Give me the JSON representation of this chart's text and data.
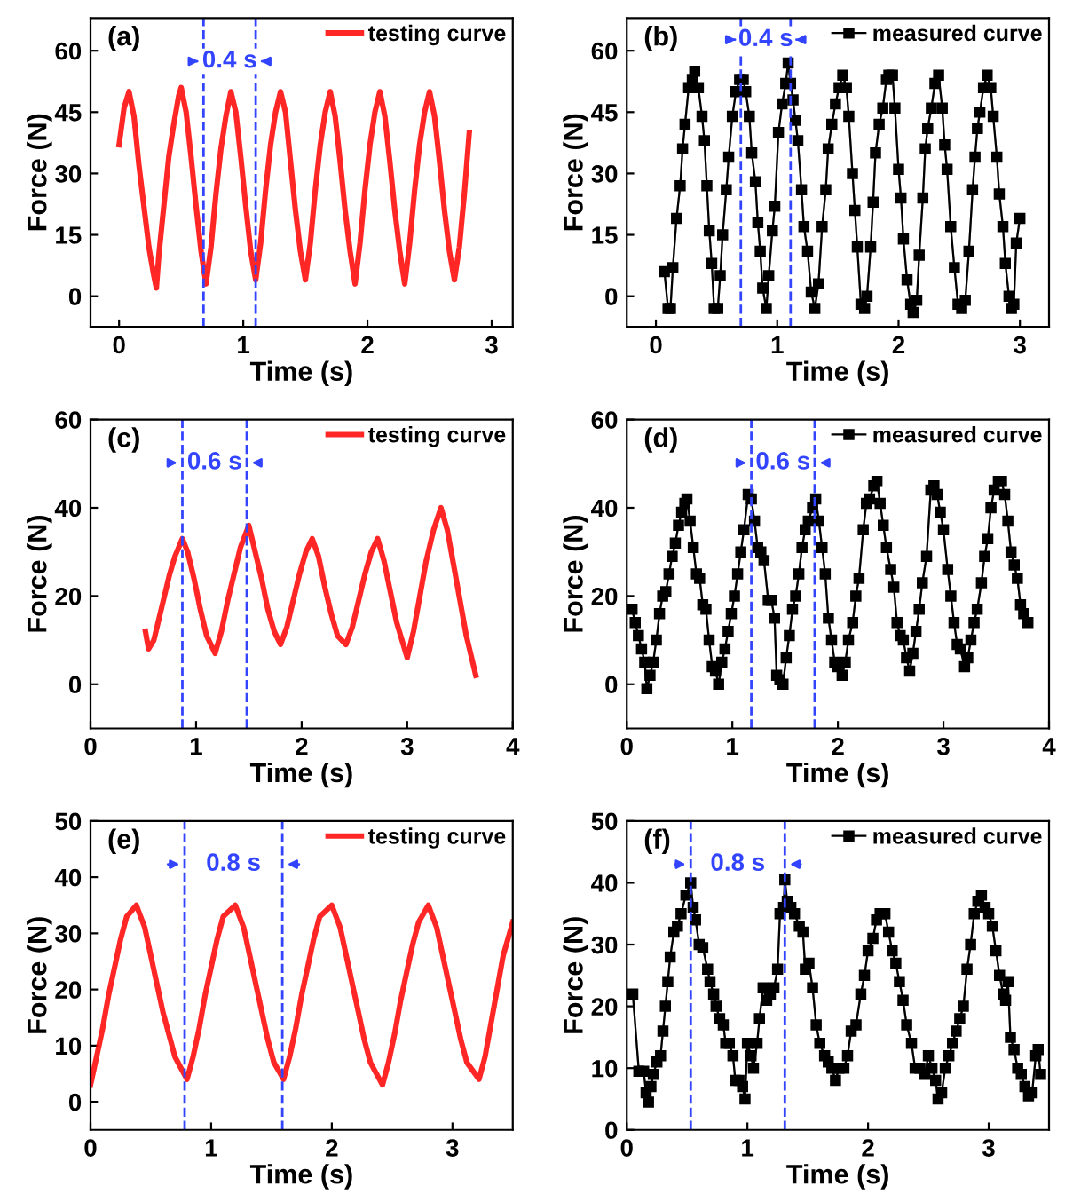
{
  "chart_data": [
    {
      "type": "line",
      "annotations": [
        "(a)",
        "0.4 s"
      ],
      "xlabel": "Time (s)",
      "ylabel": "Force (N)",
      "xlim": [
        -0.23,
        3.17
      ],
      "ylim": [
        -7.5,
        68
      ],
      "xticks": [
        0,
        1,
        2,
        3
      ],
      "yticks": [
        0,
        15,
        30,
        45,
        60
      ],
      "grid": false,
      "legend": "top right",
      "marker": "none",
      "line_style": "solid",
      "ref_lines": [
        {
          "axis": "x",
          "value": 0.68,
          "color": "#3344ff",
          "line_style": "dashed"
        },
        {
          "axis": "x",
          "value": 1.1,
          "color": "#3344ff",
          "line_style": "dashed"
        }
      ],
      "series": [
        {
          "name": "testing curve",
          "color": "#ff0000",
          "x": [
            0,
            0.04,
            0.08,
            0.12,
            0.16,
            0.2,
            0.24,
            0.28,
            0.3,
            0.32,
            0.36,
            0.4,
            0.44,
            0.48,
            0.5,
            0.54,
            0.58,
            0.62,
            0.66,
            0.7,
            0.74,
            0.78,
            0.82,
            0.86,
            0.9,
            0.94,
            0.98,
            1.02,
            1.06,
            1.1,
            1.14,
            1.18,
            1.22,
            1.26,
            1.3,
            1.34,
            1.38,
            1.42,
            1.46,
            1.5,
            1.54,
            1.58,
            1.62,
            1.66,
            1.7,
            1.74,
            1.78,
            1.82,
            1.86,
            1.9,
            1.94,
            1.98,
            2.02,
            2.06,
            2.1,
            2.14,
            2.18,
            2.22,
            2.26,
            2.3,
            2.34,
            2.38,
            2.42,
            2.46,
            2.5,
            2.54,
            2.58,
            2.62,
            2.66,
            2.7,
            2.74,
            2.78,
            2.82
          ],
          "values": [
            37,
            46,
            50,
            44,
            32,
            22,
            12,
            5,
            2,
            10,
            22,
            34,
            42,
            49,
            51,
            45,
            34,
            22,
            11,
            3,
            12,
            25,
            36,
            44,
            50,
            45,
            34,
            22,
            11,
            4,
            13,
            26,
            37,
            45,
            50,
            45,
            33,
            21,
            11,
            4,
            13,
            26,
            37,
            45,
            50,
            44,
            33,
            21,
            11,
            3,
            13,
            26,
            37,
            45,
            50,
            44,
            33,
            21,
            11,
            3,
            13,
            26,
            37,
            45,
            50,
            44,
            33,
            21,
            11,
            4,
            12,
            25,
            40
          ]
        }
      ]
    },
    {
      "type": "line",
      "annotations": [
        "(b)",
        "0.4 s"
      ],
      "xlabel": "Time (s)",
      "ylabel": "Force (N)",
      "xlim": [
        -0.24,
        3.24
      ],
      "ylim": [
        -7.5,
        68
      ],
      "xticks": [
        0,
        1,
        2,
        3
      ],
      "yticks": [
        0,
        15,
        30,
        45,
        60
      ],
      "grid": false,
      "legend": "top right",
      "marker": "square",
      "line_style": "solid",
      "ref_lines": [
        {
          "axis": "x",
          "value": 0.7,
          "color": "#3344ff",
          "line_style": "dashed"
        },
        {
          "axis": "x",
          "value": 1.11,
          "color": "#3344ff",
          "line_style": "dashed"
        }
      ],
      "series": [
        {
          "name": "measured curve",
          "color": "#000000",
          "x": [
            0.07,
            0.1,
            0.12,
            0.14,
            0.17,
            0.2,
            0.22,
            0.24,
            0.27,
            0.3,
            0.32,
            0.35,
            0.38,
            0.4,
            0.42,
            0.44,
            0.46,
            0.48,
            0.51,
            0.53,
            0.55,
            0.58,
            0.6,
            0.63,
            0.66,
            0.69,
            0.72,
            0.74,
            0.77,
            0.79,
            0.82,
            0.84,
            0.86,
            0.88,
            0.91,
            0.93,
            0.96,
            0.98,
            1.01,
            1.04,
            1.07,
            1.09,
            1.11,
            1.13,
            1.15,
            1.17,
            1.2,
            1.22,
            1.25,
            1.28,
            1.31,
            1.34,
            1.37,
            1.4,
            1.42,
            1.45,
            1.48,
            1.51,
            1.54,
            1.57,
            1.59,
            1.62,
            1.64,
            1.66,
            1.69,
            1.72,
            1.74,
            1.77,
            1.79,
            1.81,
            1.84,
            1.87,
            1.9,
            1.92,
            1.95,
            1.97,
            2.0,
            2.02,
            2.04,
            2.07,
            2.1,
            2.12,
            2.15,
            2.17,
            2.2,
            2.22,
            2.24,
            2.27,
            2.3,
            2.33,
            2.36,
            2.38,
            2.4,
            2.43,
            2.46,
            2.49,
            2.52,
            2.55,
            2.58,
            2.61,
            2.63,
            2.65,
            2.67,
            2.7,
            2.73,
            2.76,
            2.78,
            2.81,
            2.83,
            2.86,
            2.88,
            2.91,
            2.93,
            2.95,
            2.97,
            3.0
          ],
          "values": [
            6,
            -3,
            -3,
            7,
            19,
            27,
            36,
            42,
            51,
            53,
            55,
            51,
            44,
            38,
            27,
            16,
            8,
            -3,
            -3,
            5,
            15,
            26,
            34,
            44,
            50,
            53,
            53,
            50,
            44,
            35,
            28,
            18,
            11,
            2,
            -3,
            5,
            16,
            22,
            40,
            47,
            52,
            57,
            52,
            48,
            43,
            38,
            26,
            17,
            11,
            1,
            -3,
            3,
            17,
            26,
            36,
            42,
            47,
            51,
            54,
            51,
            44,
            30,
            21,
            12,
            -2,
            -3,
            0,
            12,
            23,
            35,
            42,
            46,
            53,
            54,
            54,
            46,
            31,
            24,
            14,
            4,
            -2,
            -4,
            -1,
            10,
            24,
            36,
            41,
            46,
            52,
            54,
            46,
            37,
            31,
            17,
            7,
            -2,
            -3,
            -1,
            11,
            26,
            34,
            41,
            45,
            51,
            54,
            51,
            44,
            34,
            25,
            17,
            8,
            0,
            -3,
            -2,
            13,
            19
          ]
        }
      ]
    },
    {
      "type": "line",
      "annotations": [
        "(c)",
        "0.6 s"
      ],
      "xlabel": "Time (s)",
      "ylabel": "Force (N)",
      "xlim": [
        0,
        4
      ],
      "ylim": [
        -10,
        60
      ],
      "xticks": [
        0,
        1,
        2,
        3,
        4
      ],
      "yticks": [
        0,
        20,
        40,
        60
      ],
      "grid": false,
      "legend": "top right",
      "marker": "none",
      "line_style": "solid",
      "ref_lines": [
        {
          "axis": "x",
          "value": 0.87,
          "color": "#3344ff",
          "line_style": "dashed"
        },
        {
          "axis": "x",
          "value": 1.48,
          "color": "#3344ff",
          "line_style": "dashed"
        }
      ],
      "series": [
        {
          "name": "testing curve",
          "color": "#ff0000",
          "x": [
            0.52,
            0.55,
            0.6,
            0.65,
            0.7,
            0.75,
            0.8,
            0.87,
            0.92,
            0.98,
            1.04,
            1.1,
            1.18,
            1.24,
            1.3,
            1.36,
            1.42,
            1.5,
            1.56,
            1.62,
            1.68,
            1.74,
            1.8,
            1.86,
            1.92,
            1.98,
            2.04,
            2.1,
            2.16,
            2.22,
            2.28,
            2.34,
            2.42,
            2.48,
            2.54,
            2.6,
            2.66,
            2.72,
            2.78,
            2.84,
            2.9,
            3.0,
            3.06,
            3.12,
            3.18,
            3.25,
            3.32,
            3.38,
            3.44,
            3.5,
            3.56,
            3.65
          ],
          "values": [
            12,
            8,
            10,
            15,
            20,
            25,
            29,
            33,
            30,
            24,
            17,
            11,
            7,
            12,
            19,
            25,
            31,
            36,
            30,
            24,
            17,
            12,
            9,
            13,
            19,
            25,
            30,
            33,
            29,
            22,
            16,
            11,
            9,
            13,
            19,
            25,
            30,
            33,
            28,
            21,
            14,
            6,
            12,
            20,
            28,
            35,
            40,
            35,
            27,
            19,
            11,
            2
          ]
        }
      ]
    },
    {
      "type": "line",
      "annotations": [
        "(d)",
        "0.6 s"
      ],
      "xlabel": "Time (s)",
      "ylabel": "Force (N)",
      "xlim": [
        0,
        4
      ],
      "ylim": [
        -10,
        60
      ],
      "xticks": [
        0,
        1,
        2,
        3,
        4
      ],
      "yticks": [
        0,
        20,
        40,
        60
      ],
      "grid": false,
      "legend": "top right",
      "marker": "square",
      "line_style": "solid",
      "ref_lines": [
        {
          "axis": "x",
          "value": 1.18,
          "color": "#3344ff",
          "line_style": "dashed"
        },
        {
          "axis": "x",
          "value": 1.78,
          "color": "#3344ff",
          "line_style": "dashed"
        }
      ],
      "series": [
        {
          "name": "measured curve",
          "color": "#000000",
          "x": [
            0.05,
            0.08,
            0.11,
            0.14,
            0.17,
            0.19,
            0.22,
            0.25,
            0.28,
            0.31,
            0.34,
            0.37,
            0.4,
            0.43,
            0.46,
            0.49,
            0.52,
            0.55,
            0.57,
            0.6,
            0.63,
            0.66,
            0.69,
            0.72,
            0.75,
            0.78,
            0.81,
            0.84,
            0.87,
            0.9,
            0.93,
            0.96,
            0.99,
            1.02,
            1.05,
            1.08,
            1.11,
            1.15,
            1.18,
            1.21,
            1.24,
            1.27,
            1.3,
            1.34,
            1.37,
            1.4,
            1.42,
            1.45,
            1.48,
            1.51,
            1.54,
            1.57,
            1.6,
            1.63,
            1.66,
            1.69,
            1.72,
            1.76,
            1.79,
            1.82,
            1.85,
            1.88,
            1.91,
            1.94,
            1.97,
            2.0,
            2.04,
            2.07,
            2.1,
            2.14,
            2.17,
            2.2,
            2.24,
            2.27,
            2.3,
            2.34,
            2.37,
            2.4,
            2.43,
            2.46,
            2.5,
            2.53,
            2.56,
            2.59,
            2.62,
            2.65,
            2.68,
            2.71,
            2.74,
            2.77,
            2.8,
            2.84,
            2.88,
            2.91,
            2.94,
            2.97,
            3.0,
            3.04,
            3.07,
            3.1,
            3.13,
            3.16,
            3.2,
            3.23,
            3.26,
            3.29,
            3.32,
            3.36,
            3.39,
            3.42,
            3.45,
            3.48,
            3.52,
            3.55,
            3.58,
            3.61,
            3.64,
            3.67,
            3.7,
            3.73,
            3.76,
            3.8
          ],
          "values": [
            17,
            14,
            11,
            8,
            5,
            -1,
            2,
            5,
            10,
            16,
            20,
            21,
            25,
            29,
            32,
            36,
            39,
            41,
            42,
            37,
            31,
            25,
            24,
            18,
            17,
            10,
            4,
            3,
            0,
            5,
            8,
            12,
            16,
            20,
            25,
            30,
            35,
            43,
            42,
            37,
            31,
            30,
            28,
            19,
            19,
            15,
            2,
            1,
            0,
            6,
            11,
            17,
            20,
            25,
            31,
            35,
            37,
            40,
            42,
            37,
            31,
            25,
            15,
            10,
            5,
            4,
            2,
            5,
            10,
            14,
            20,
            24,
            35,
            41,
            42,
            45,
            46,
            41,
            36,
            31,
            26,
            22,
            14,
            11,
            10,
            6,
            3,
            7,
            12,
            17,
            23,
            29,
            44,
            45,
            43,
            39,
            35,
            26,
            20,
            14,
            9,
            8,
            4,
            6,
            10,
            14,
            17,
            23,
            29,
            33,
            40,
            44,
            46,
            46,
            43,
            37,
            30,
            27,
            24,
            18,
            16,
            14
          ]
        }
      ]
    },
    {
      "type": "line",
      "annotations": [
        "(e)",
        "0.8 s"
      ],
      "xlabel": "Time (s)",
      "ylabel": "Force (N)",
      "xlim": [
        0,
        3.5
      ],
      "ylim": [
        -5,
        50
      ],
      "xticks": [
        0,
        1,
        2,
        3
      ],
      "yticks": [
        0,
        10,
        20,
        30,
        40,
        50
      ],
      "grid": false,
      "legend": "top right",
      "marker": "none",
      "line_style": "solid",
      "ref_lines": [
        {
          "axis": "x",
          "value": 0.78,
          "color": "#3344ff",
          "line_style": "dashed"
        },
        {
          "axis": "x",
          "value": 1.59,
          "color": "#3344ff",
          "line_style": "dashed"
        }
      ],
      "series": [
        {
          "name": "testing curve",
          "color": "#ff0000",
          "x": [
            0,
            0.05,
            0.1,
            0.15,
            0.2,
            0.25,
            0.3,
            0.38,
            0.45,
            0.5,
            0.55,
            0.6,
            0.65,
            0.7,
            0.8,
            0.85,
            0.9,
            0.95,
            1.0,
            1.05,
            1.1,
            1.2,
            1.27,
            1.32,
            1.37,
            1.42,
            1.47,
            1.52,
            1.6,
            1.65,
            1.7,
            1.75,
            1.8,
            1.85,
            1.9,
            2.0,
            2.07,
            2.12,
            2.17,
            2.22,
            2.27,
            2.32,
            2.42,
            2.47,
            2.52,
            2.57,
            2.62,
            2.67,
            2.72,
            2.8,
            2.87,
            2.92,
            2.97,
            3.02,
            3.07,
            3.12,
            3.22,
            3.27,
            3.32,
            3.37,
            3.42,
            3.5
          ],
          "values": [
            3,
            8,
            13,
            19,
            24,
            29,
            33,
            35,
            31,
            26,
            21,
            16,
            12,
            8,
            4,
            8,
            13,
            19,
            24,
            29,
            33,
            35,
            31,
            26,
            21,
            16,
            11,
            7,
            4,
            8,
            13,
            19,
            24,
            29,
            33,
            35,
            31,
            26,
            21,
            16,
            11,
            7,
            3,
            7,
            12,
            18,
            23,
            28,
            32,
            35,
            31,
            26,
            21,
            16,
            11,
            7,
            4,
            8,
            14,
            20,
            26,
            32
          ]
        }
      ]
    },
    {
      "type": "line",
      "annotations": [
        "(f)",
        "0.8 s"
      ],
      "xlabel": "Time (s)",
      "ylabel": "Force (N)",
      "xlim": [
        0,
        3.5
      ],
      "ylim": [
        0,
        50
      ],
      "xticks": [
        0,
        1,
        2,
        3
      ],
      "yticks": [
        0,
        10,
        20,
        30,
        40,
        50
      ],
      "grid": false,
      "legend": "top right",
      "marker": "square",
      "line_style": "solid",
      "ref_lines": [
        {
          "axis": "x",
          "value": 0.53,
          "color": "#3344ff",
          "line_style": "dashed"
        },
        {
          "axis": "x",
          "value": 1.31,
          "color": "#3344ff",
          "line_style": "dashed"
        }
      ],
      "series": [
        {
          "name": "measured curve",
          "color": "#000000",
          "x": [
            0.05,
            0.1,
            0.14,
            0.16,
            0.18,
            0.2,
            0.22,
            0.25,
            0.28,
            0.3,
            0.32,
            0.34,
            0.36,
            0.39,
            0.42,
            0.45,
            0.49,
            0.53,
            0.55,
            0.57,
            0.6,
            0.63,
            0.67,
            0.69,
            0.72,
            0.74,
            0.77,
            0.8,
            0.82,
            0.85,
            0.88,
            0.9,
            0.93,
            0.96,
            0.98,
            1.0,
            1.03,
            1.05,
            1.08,
            1.1,
            1.13,
            1.16,
            1.19,
            1.22,
            1.25,
            1.27,
            1.3,
            1.31,
            1.33,
            1.36,
            1.39,
            1.43,
            1.46,
            1.48,
            1.51,
            1.54,
            1.57,
            1.6,
            1.64,
            1.67,
            1.7,
            1.73,
            1.76,
            1.8,
            1.83,
            1.86,
            1.9,
            1.94,
            1.97,
            2.0,
            2.04,
            2.07,
            2.1,
            2.14,
            2.17,
            2.2,
            2.23,
            2.26,
            2.29,
            2.32,
            2.36,
            2.39,
            2.43,
            2.47,
            2.5,
            2.53,
            2.56,
            2.58,
            2.61,
            2.64,
            2.67,
            2.7,
            2.73,
            2.76,
            2.79,
            2.82,
            2.85,
            2.88,
            2.91,
            2.94,
            2.97,
            3.0,
            3.03,
            3.06,
            3.09,
            3.12,
            3.14,
            3.16,
            3.18,
            3.21,
            3.24,
            3.27,
            3.3,
            3.33,
            3.36,
            3.39,
            3.41,
            3.43
          ],
          "values": [
            22,
            9.5,
            9.5,
            6,
            4.5,
            7,
            9,
            11,
            12,
            16,
            20,
            24,
            28,
            32,
            33,
            35,
            38,
            40,
            36,
            34,
            30,
            29.5,
            26,
            24,
            22,
            20,
            18,
            17,
            14,
            14,
            12,
            8,
            8,
            7,
            5,
            14,
            12,
            10,
            14,
            18,
            23,
            21,
            22,
            23,
            26,
            35,
            36,
            40.5,
            37,
            36,
            35,
            33,
            32,
            26,
            27,
            23,
            17,
            14,
            12,
            11,
            10,
            8,
            10,
            10,
            12,
            16,
            17,
            22,
            25,
            29,
            31,
            34,
            35,
            35,
            32,
            29,
            27,
            24,
            21,
            17,
            14,
            10,
            10,
            9,
            12,
            10,
            8,
            5,
            6,
            10,
            12,
            14,
            16,
            18,
            20,
            26,
            30,
            35,
            37,
            38,
            36,
            35,
            33,
            29,
            25,
            22,
            21,
            24,
            15,
            13,
            10,
            9,
            7,
            5.5,
            6,
            12,
            13,
            9
          ]
        }
      ]
    }
  ]
}
